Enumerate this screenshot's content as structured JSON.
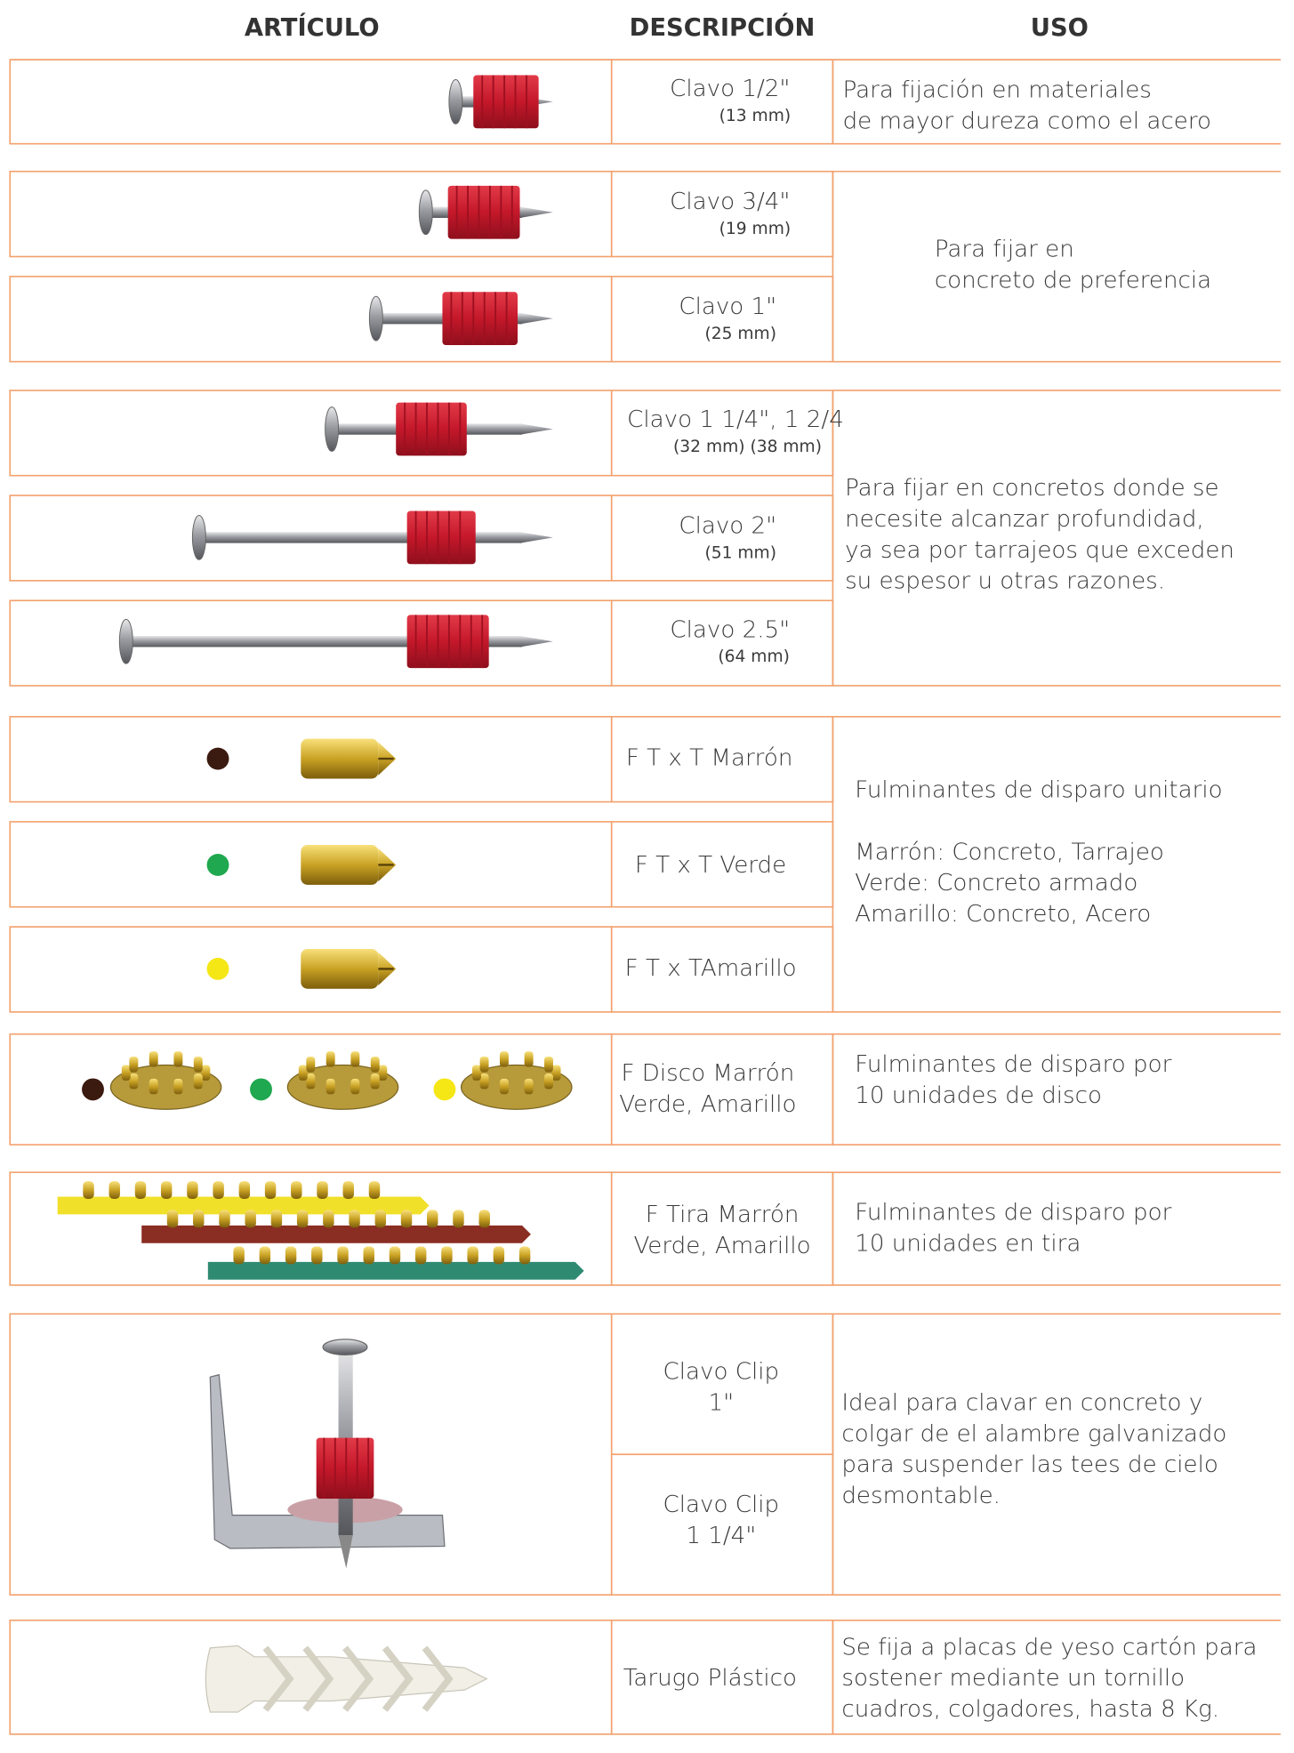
{
  "header": {
    "articulo": "ARTÍCULO",
    "descripcion": "DESCRIPCIÓN",
    "uso": "USO"
  },
  "groups": [
    {
      "rows": [
        {
          "lines": [
            "Clavo 1/2\"",
            "(13 mm)"
          ]
        }
      ],
      "uso": [
        "Para fijación en materiales",
        "de mayor dureza como el acero"
      ]
    },
    {
      "rows": [
        {
          "lines": [
            "Clavo 3/4\"",
            "(19 mm)"
          ]
        },
        {
          "lines": [
            "Clavo 1\"",
            "(25 mm)"
          ]
        }
      ],
      "uso": [
        "Para fijar en",
        "concreto de preferencia"
      ]
    },
    {
      "rows": [
        {
          "lines": [
            "Clavo 1 1/4\", 1 2/4",
            "(32 mm)  (38 mm)"
          ]
        },
        {
          "lines": [
            "Clavo 2\"",
            "(51 mm)"
          ]
        },
        {
          "lines": [
            "Clavo 2.5\"",
            "(64 mm)"
          ]
        }
      ],
      "uso": [
        "Para fijar en concretos donde se",
        "necesite alcanzar profundidad,",
        "ya sea por tarrajeos que exceden",
        "su espesor u otras razones."
      ]
    },
    {
      "rows": [
        {
          "lines": [
            "F T x T Marrón"
          ]
        },
        {
          "lines": [
            "F T x T Verde"
          ]
        },
        {
          "lines": [
            "F T x TAmarillo"
          ]
        }
      ],
      "uso": [
        "Fulminantes de disparo unitario",
        "Marrón: Concreto, Tarrajeo",
        "Verde: Concreto armado",
        "Amarillo: Concreto, Acero"
      ]
    },
    {
      "rows": [
        {
          "lines": [
            "F Disco Marrón",
            "Verde, Amarillo"
          ]
        }
      ],
      "uso": [
        "Fulminantes de disparo por",
        "10 unidades de disco"
      ]
    },
    {
      "rows": [
        {
          "lines": [
            "F Tira Marrón",
            "Verde, Amarillo"
          ]
        }
      ],
      "uso": [
        "Fulminantes de disparo por",
        "10 unidades en tira"
      ]
    },
    {
      "rows": [
        {
          "lines": [
            "Clavo Clip",
            "1\""
          ]
        },
        {
          "lines": [
            "Clavo Clip",
            "1 1/4\""
          ]
        }
      ],
      "uso": [
        "Ideal para clavar en concreto y",
        "colgar de el alambre galvanizado",
        "para suspender las tees de cielo",
        "desmontable."
      ]
    },
    {
      "rows": [
        {
          "lines": [
            "Tarugo Plástico"
          ]
        }
      ],
      "uso": [
        "Se fija a placas de yeso cartón para",
        "sostener mediante un tornillo",
        "cuadros, colgadores, hasta 8 Kg."
      ]
    }
  ]
}
